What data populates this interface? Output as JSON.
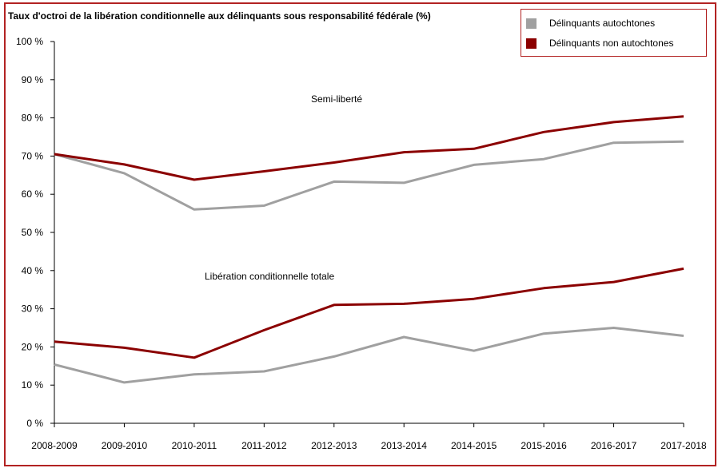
{
  "chart_data": {
    "type": "line",
    "title": "Taux d'octroi de la libération conditionnelle aux délinquants sous responsabilité fédérale (%)",
    "categories": [
      "2008-2009",
      "2009-2010",
      "2010-2011",
      "2011-2012",
      "2012-2013",
      "2013-2014",
      "2014-2015",
      "2015-2016",
      "2016-2017",
      "2017-2018"
    ],
    "ylim": [
      0,
      100
    ],
    "yticks": [
      0,
      10,
      20,
      30,
      40,
      50,
      60,
      70,
      80,
      90,
      100
    ],
    "ytick_labels": [
      "0 %",
      "10 %",
      "20 %",
      "30 %",
      "40 %",
      "50 %",
      "60 %",
      "70 %",
      "80 %",
      "90 %",
      "100 %"
    ],
    "legend": [
      {
        "label": "Délinquants autochtones",
        "color": "#a0a0a0"
      },
      {
        "label": "Délinquants non autochtones",
        "color": "#8b0000"
      }
    ],
    "legend_position": "top-right",
    "annotations": {
      "semi_liberte": "Semi-liberté",
      "liberation_totale": "Libération conditionnelle totale"
    },
    "groups": [
      {
        "name": "Semi-liberté",
        "series": [
          {
            "name": "Délinquants autochtones",
            "color": "#a0a0a0",
            "values": [
              70.5,
              65.5,
              56,
              57,
              63.3,
              63,
              67.7,
              69.2,
              73.5,
              73.8
            ]
          },
          {
            "name": "Délinquants non autochtones",
            "color": "#8b0000",
            "values": [
              70.5,
              67.8,
              63.8,
              66,
              68.3,
              71,
              71.9,
              76.3,
              78.9,
              80.4
            ]
          }
        ]
      },
      {
        "name": "Libération conditionnelle totale",
        "series": [
          {
            "name": "Délinquants autochtones",
            "color": "#a0a0a0",
            "values": [
              15.4,
              10.7,
              12.8,
              13.6,
              17.5,
              22.6,
              19,
              23.5,
              25,
              22.9
            ]
          },
          {
            "name": "Délinquants non autochtones",
            "color": "#8b0000",
            "values": [
              21.4,
              19.8,
              17.2,
              24.4,
              31,
              31.3,
              32.6,
              35.4,
              37,
              40.5
            ]
          }
        ]
      }
    ],
    "grid": false
  }
}
